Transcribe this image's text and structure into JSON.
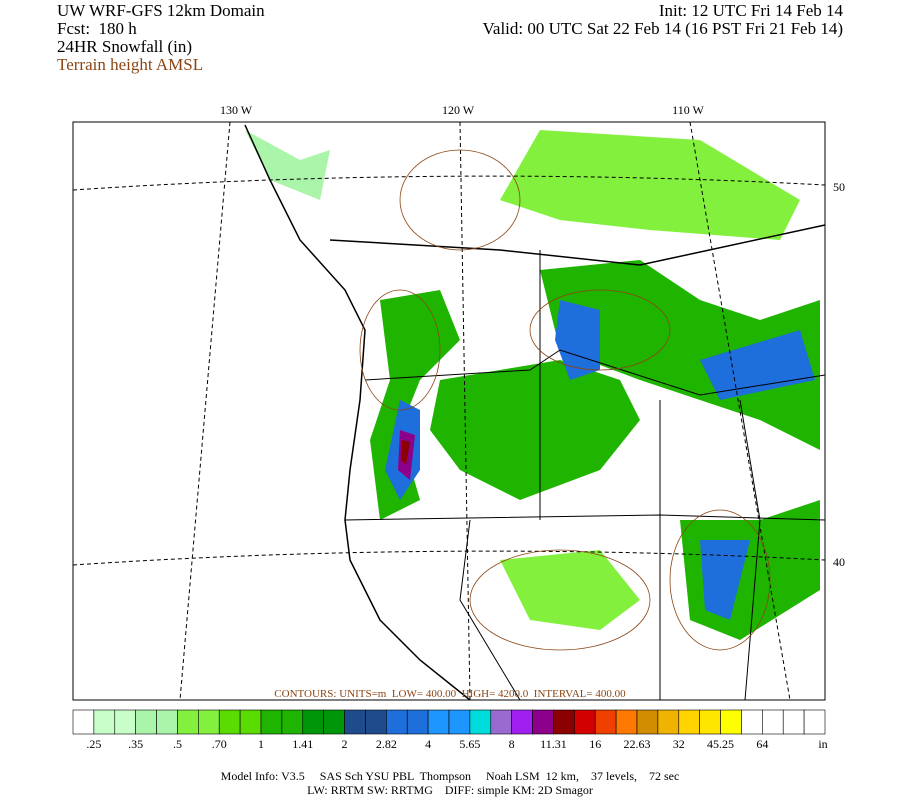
{
  "header": {
    "title": "UW WRF-GFS 12km Domain",
    "forecast": "Fcst:  180 h",
    "field": "24HR Snowfall (in)",
    "overlay": "Terrain height AMSL",
    "init": "Init: 12 UTC Fri 14 Feb 14",
    "valid": "Valid: 00 UTC Sat 22 Feb 14 (16 PST Fri 21 Feb 14)"
  },
  "map": {
    "longitude_labels": [
      "130 W",
      "120 W",
      "110 W"
    ],
    "latitude_labels": [
      "50",
      "40"
    ],
    "contour_note": "CONTOURS: UNITS=m  LOW= 400.00  HIGH= 4200.0  INTERVAL= 400.00"
  },
  "legend": {
    "colors": [
      "#ffffff",
      "#c8ffc8",
      "#c8ffc8",
      "#aaf5aa",
      "#aaf5aa",
      "#82f03c",
      "#82f03c",
      "#5adc00",
      "#5adc00",
      "#1eb400",
      "#1eb400",
      "#00960a",
      "#00960a",
      "#1e4b8c",
      "#1e4b8c",
      "#1e6edc",
      "#1e6edc",
      "#1e96ff",
      "#1e96ff",
      "#00dcdc",
      "#9a6ad0",
      "#a020f0",
      "#8c008c",
      "#8b0000",
      "#d20000",
      "#f04000",
      "#ff7800",
      "#d28c00",
      "#f0b400",
      "#ffd200",
      "#ffe600",
      "#ffff00",
      "#ffffff",
      "#ffffff",
      "#ffffff",
      "#ffffff"
    ],
    "labels": [
      ".25",
      ".35",
      ".5",
      ".70",
      "1",
      "1.41",
      "2",
      "2.82",
      "4",
      "5.65",
      "8",
      "11.31",
      "16",
      "22.63",
      "32",
      "45.25",
      "64"
    ],
    "unit": "in"
  },
  "footer": {
    "line1": "Model Info: V3.5     SAS Sch YSU PBL  Thompson     Noah LSM  12 km,    37 levels,    72 sec",
    "line2": "LW: RRTM SW: RRTMG    DIFF: simple KM: 2D Smagor"
  }
}
